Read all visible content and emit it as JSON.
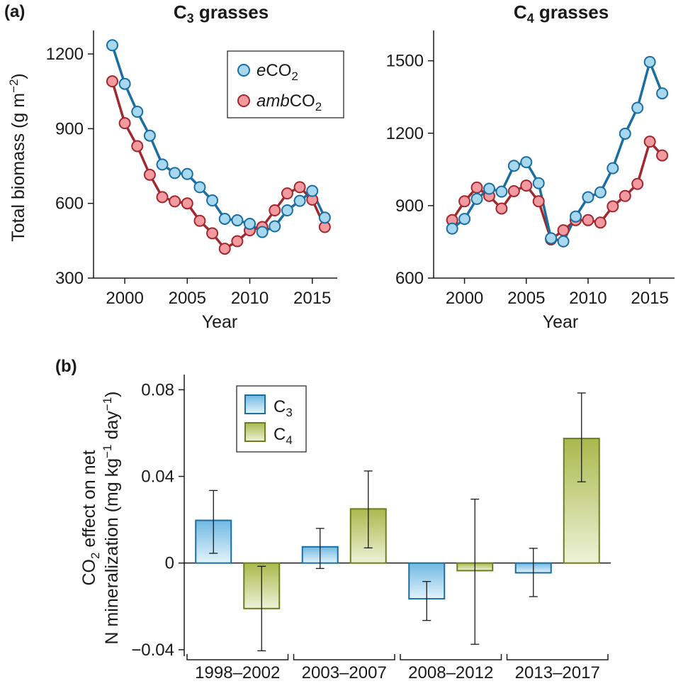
{
  "chart_data": [
    {
      "panel": "(a)",
      "type": "line",
      "title": "C3 grasses",
      "title_main": "C",
      "title_sub": "3",
      "title_rest": " grasses",
      "xlabel": "Year",
      "ylabel": "Total biomass (g m−2)",
      "ylabel_main": "Total biomass (g m",
      "ylabel_sup": "−2",
      "ylabel_end": ")",
      "xlim": [
        1997.5,
        2017
      ],
      "ylim": [
        300,
        1260
      ],
      "xticks": [
        2000,
        2005,
        2010,
        2015
      ],
      "yticks": [
        300,
        600,
        900,
        1200
      ],
      "x": [
        1999,
        2000,
        2001,
        2002,
        2003,
        2004,
        2005,
        2006,
        2007,
        2008,
        2009,
        2010,
        2011,
        2012,
        2013,
        2014,
        2015,
        2016
      ],
      "series": [
        {
          "name": "eCO2",
          "italic": "e",
          "main": "CO",
          "sub": "2",
          "color": "#1a6ea0",
          "fill": "#a8d8f0",
          "values": [
            1235,
            1080,
            968,
            872,
            756,
            722,
            718,
            665,
            612,
            538,
            532,
            518,
            485,
            508,
            572,
            610,
            650,
            543
          ]
        },
        {
          "name": "ambCO2",
          "italic": "amb",
          "main": "CO",
          "sub": "2",
          "color": "#a0282e",
          "fill": "#f29a9f",
          "values": [
            1090,
            922,
            830,
            715,
            625,
            608,
            600,
            530,
            480,
            418,
            448,
            492,
            505,
            572,
            640,
            665,
            615,
            505
          ]
        }
      ],
      "legend": "top-right"
    },
    {
      "type": "line",
      "title": "C4 grasses",
      "title_main": "C",
      "title_sub": "4",
      "title_rest": " grasses",
      "xlabel": "Year",
      "xlim": [
        1997.5,
        2017
      ],
      "ylim": [
        600,
        1590
      ],
      "xticks": [
        2000,
        2005,
        2010,
        2015
      ],
      "yticks": [
        600,
        900,
        1200,
        1500
      ],
      "x": [
        1999,
        2000,
        2001,
        2002,
        2003,
        2004,
        2005,
        2006,
        2007,
        2008,
        2009,
        2010,
        2011,
        2012,
        2013,
        2014,
        2015,
        2016
      ],
      "series": [
        {
          "name": "eCO2",
          "color": "#1a6ea0",
          "fill": "#a8d8f0",
          "values": [
            805,
            845,
            928,
            970,
            958,
            1065,
            1080,
            993,
            765,
            752,
            855,
            935,
            955,
            1055,
            1198,
            1305,
            1495,
            1365
          ]
        },
        {
          "name": "ambCO2",
          "color": "#a0282e",
          "fill": "#f29a9f",
          "values": [
            840,
            918,
            975,
            940,
            888,
            960,
            983,
            918,
            760,
            798,
            840,
            840,
            830,
            897,
            940,
            990,
            1165,
            1108
          ]
        }
      ]
    },
    {
      "panel": "(b)",
      "type": "bar",
      "ylabel_line1_main": "CO",
      "ylabel_line1_sub": "2",
      "ylabel_line1_rest": " effect on net",
      "ylabel_line2_main": "N mineralization (mg kg",
      "ylabel_line2_sup1": "−1",
      "ylabel_line2_mid": " day",
      "ylabel_line2_sup2": "−1",
      "ylabel_line2_end": ")",
      "ylabel": "CO2 effect on net N mineralization (mg kg−1 day−1)",
      "ylim": [
        -0.043,
        0.087
      ],
      "yticks": [
        -0.04,
        0,
        0.04,
        0.08
      ],
      "ytick_labels": [
        "−0.04",
        "0",
        "0.04",
        "0.08"
      ],
      "categories": [
        "1998–2002",
        "2003–2007",
        "2008–2012",
        "2013–2017"
      ],
      "series": [
        {
          "name": "C3",
          "main": "C",
          "sub": "3",
          "stroke": "#1a6ea0",
          "fill_top": "#6fb8e2",
          "fill_bottom": "#e4f3fb",
          "values": [
            0.0197,
            0.0075,
            -0.0165,
            -0.0045
          ],
          "err_low": [
            0.0045,
            -0.0025,
            -0.0265,
            -0.0155
          ],
          "err_high": [
            0.0335,
            0.016,
            -0.0085,
            0.0068
          ]
        },
        {
          "name": "C4",
          "main": "C",
          "sub": "4",
          "stroke": "#6e7d1e",
          "fill_top": "#a9b94c",
          "fill_bottom": "#eef2d8",
          "values": [
            -0.021,
            0.025,
            -0.0035,
            0.0575
          ],
          "err_low": [
            -0.0405,
            0.007,
            -0.0375,
            0.0375
          ],
          "err_high": [
            -0.0015,
            0.0425,
            0.0295,
            0.0785
          ]
        }
      ],
      "legend": "top-left"
    }
  ]
}
